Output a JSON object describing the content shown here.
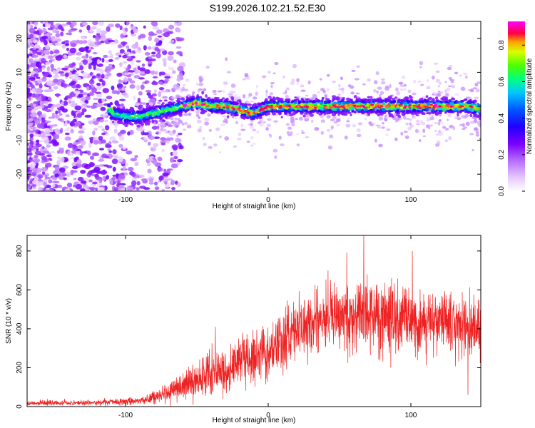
{
  "figure_title": "S199.2026.102.21.52.E30",
  "colors": {
    "snr_line": "#ee2222",
    "frame": "#000000",
    "background": "#ffffff"
  },
  "chart_data": [
    {
      "type": "heatmap",
      "name": "spectrogram",
      "title": "",
      "xlabel": "Height of straight line (km)",
      "ylabel": "Frequency (Hz)",
      "xlim": [
        -169,
        149
      ],
      "ylim": [
        -25,
        25
      ],
      "x_ticks": [
        -100,
        0,
        100
      ],
      "y_ticks": [
        -20,
        -10,
        0,
        10,
        20
      ],
      "x_tick_labels": [
        "-100",
        "0",
        "100"
      ],
      "y_tick_labels": [
        "-20",
        "-10",
        "0",
        "10",
        "20"
      ],
      "ridge_frequency_hz": [
        [
          -110,
          -2
        ],
        [
          -100,
          -3
        ],
        [
          -90,
          -3
        ],
        [
          -80,
          -2
        ],
        [
          -70,
          -1
        ],
        [
          -60,
          0
        ],
        [
          -50,
          1
        ],
        [
          -40,
          0
        ],
        [
          -30,
          0
        ],
        [
          -20,
          -1
        ],
        [
          -10,
          -2
        ],
        [
          0,
          0
        ],
        [
          10,
          0
        ],
        [
          20,
          0
        ],
        [
          30,
          0
        ],
        [
          40,
          0
        ],
        [
          50,
          0
        ],
        [
          60,
          0
        ],
        [
          70,
          0
        ],
        [
          80,
          0
        ],
        [
          90,
          0
        ],
        [
          100,
          0
        ],
        [
          110,
          0
        ],
        [
          120,
          0
        ],
        [
          130,
          0
        ],
        [
          140,
          0
        ],
        [
          149,
          -1
        ]
      ],
      "noise_dominated_below_km": -80,
      "colorbar": {
        "label": "Normalized spectral amplitude",
        "range": [
          0,
          0.93
        ],
        "ticks": [
          0.0,
          0.2,
          0.4,
          0.6,
          0.8
        ],
        "tick_labels": [
          "0.0",
          "0.2",
          "0.4",
          "0.6",
          "0.8"
        ],
        "colormap": [
          [
            0.0,
            "#ffffff"
          ],
          [
            0.08,
            "#e6c8ff"
          ],
          [
            0.18,
            "#b66cff"
          ],
          [
            0.28,
            "#7a00ff"
          ],
          [
            0.38,
            "#2000ff"
          ],
          [
            0.48,
            "#0055ff"
          ],
          [
            0.58,
            "#00c8ff"
          ],
          [
            0.66,
            "#00ff80"
          ],
          [
            0.74,
            "#4cff00"
          ],
          [
            0.82,
            "#d8ff00"
          ],
          [
            0.88,
            "#ffa000"
          ],
          [
            0.93,
            "#ff0040"
          ],
          [
            1.0,
            "#ff00ff"
          ]
        ]
      }
    },
    {
      "type": "line",
      "name": "snr",
      "title": "",
      "xlabel": "Height of straight line (km)",
      "ylabel": "SNR (10 * v/v)",
      "xlim": [
        -169,
        149
      ],
      "ylim": [
        0,
        880
      ],
      "x_ticks": [
        -100,
        0,
        100
      ],
      "y_ticks": [
        0,
        200,
        400,
        600,
        800
      ],
      "x_tick_labels": [
        "-100",
        "0",
        "100"
      ],
      "y_tick_labels": [
        "0",
        "200",
        "400",
        "600",
        "800"
      ],
      "series": [
        {
          "name": "SNR",
          "color": "#ee2222",
          "envelope": [
            {
              "x": -169,
              "mean": 18,
              "spread": 14
            },
            {
              "x": -120,
              "mean": 20,
              "spread": 14
            },
            {
              "x": -90,
              "mean": 30,
              "spread": 20
            },
            {
              "x": -75,
              "mean": 55,
              "spread": 40
            },
            {
              "x": -60,
              "mean": 110,
              "spread": 70
            },
            {
              "x": -45,
              "mean": 160,
              "spread": 100
            },
            {
              "x": -30,
              "mean": 190,
              "spread": 110
            },
            {
              "x": -15,
              "mean": 240,
              "spread": 120
            },
            {
              "x": 0,
              "mean": 290,
              "spread": 130
            },
            {
              "x": 15,
              "mean": 360,
              "spread": 150
            },
            {
              "x": 30,
              "mean": 440,
              "spread": 170
            },
            {
              "x": 50,
              "mean": 470,
              "spread": 180
            },
            {
              "x": 70,
              "mean": 480,
              "spread": 190
            },
            {
              "x": 90,
              "mean": 455,
              "spread": 180
            },
            {
              "x": 110,
              "mean": 430,
              "spread": 160
            },
            {
              "x": 130,
              "mean": 420,
              "spread": 150
            },
            {
              "x": 149,
              "mean": 400,
              "spread": 150
            }
          ],
          "peaks": [
            {
              "x": -37,
              "y": 410
            },
            {
              "x": 42,
              "y": 700
            },
            {
              "x": 55,
              "y": 790
            },
            {
              "x": 67,
              "y": 880
            },
            {
              "x": 101,
              "y": 800
            },
            {
              "x": 140,
              "y": 60
            }
          ]
        }
      ]
    }
  ]
}
